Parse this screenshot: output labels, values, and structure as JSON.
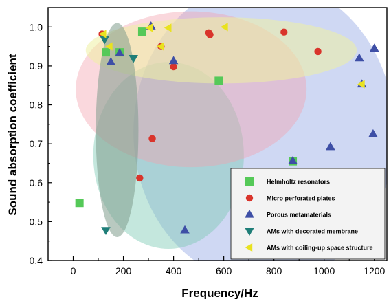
{
  "chart_data": {
    "type": "scatter",
    "xlabel": "Frequency/Hz",
    "ylabel": "Sound absorption coefficient",
    "xlim": [
      -100,
      1250
    ],
    "ylim": [
      0.4,
      1.05
    ],
    "x_ticks": [
      0,
      200,
      400,
      600,
      800,
      1000,
      1200
    ],
    "y_ticks": [
      0.4,
      0.5,
      0.6,
      0.7,
      0.8,
      0.9,
      1.0
    ],
    "x_tick_labels": [
      "0",
      "200",
      "400",
      "600",
      "800",
      "1000",
      "1200"
    ],
    "y_tick_labels": [
      "0.4",
      "0.5",
      "0.6",
      "0.7",
      "0.8",
      "0.9",
      "1.0"
    ],
    "grid": false,
    "legend_position": "bottom-right",
    "regions": [
      {
        "cx": 760,
        "cy": 0.73,
        "rx": 520,
        "ry": 0.39,
        "rotate": 0,
        "color": "#9aaee6",
        "opacity": 0.48
      },
      {
        "cx": 380,
        "cy": 0.67,
        "rx": 300,
        "ry": 0.24,
        "rotate": 0,
        "color": "#7ccab3",
        "opacity": 0.45
      },
      {
        "cx": 470,
        "cy": 0.84,
        "rx": 460,
        "ry": 0.2,
        "rotate": 0,
        "color": "#f3a3ae",
        "opacity": 0.42
      },
      {
        "cx": 590,
        "cy": 0.94,
        "rx": 540,
        "ry": 0.085,
        "rotate": 0,
        "color": "#eef0a2",
        "opacity": 0.55
      },
      {
        "cx": 175,
        "cy": 0.735,
        "rx": 85,
        "ry": 0.275,
        "rotate": 0,
        "color": "#7f9c8c",
        "opacity": 0.55
      }
    ],
    "series": [
      {
        "name": "Helmholtz resonators",
        "marker": "square",
        "color": "#55c958",
        "points": [
          [
            25,
            0.548
          ],
          [
            130,
            0.935
          ],
          [
            185,
            0.935
          ],
          [
            275,
            0.988
          ],
          [
            580,
            0.862
          ],
          [
            875,
            0.655
          ]
        ]
      },
      {
        "name": "Micro perforated plates",
        "marker": "circle",
        "color": "#d9342b",
        "points": [
          [
            115,
            0.982
          ],
          [
            265,
            0.612
          ],
          [
            315,
            0.713
          ],
          [
            350,
            0.95
          ],
          [
            400,
            0.898
          ],
          [
            540,
            0.985
          ],
          [
            545,
            0.98
          ],
          [
            840,
            0.987
          ],
          [
            975,
            0.937
          ]
        ]
      },
      {
        "name": "Porous metamaterials",
        "marker": "triangle-up",
        "color": "#3e4fa6",
        "points": [
          [
            150,
            0.91
          ],
          [
            185,
            0.933
          ],
          [
            310,
            1.002
          ],
          [
            400,
            0.913
          ],
          [
            445,
            0.478
          ],
          [
            875,
            0.656
          ],
          [
            1025,
            0.692
          ],
          [
            1140,
            0.92
          ],
          [
            1150,
            0.853
          ],
          [
            1195,
            0.725
          ],
          [
            1200,
            0.945
          ]
        ]
      },
      {
        "name": "AMs with decorated membrane",
        "marker": "triangle-down",
        "color": "#1f7e78",
        "points": [
          [
            125,
            0.968
          ],
          [
            130,
            0.478
          ],
          [
            240,
            0.92
          ]
        ]
      },
      {
        "name": "AMs with coiling-up space structure",
        "marker": "triangle-left",
        "color": "#e9e21f",
        "points": [
          [
            120,
            0.982
          ],
          [
            145,
            0.95
          ],
          [
            305,
            0.998
          ],
          [
            350,
            0.95
          ],
          [
            380,
            0.998
          ],
          [
            605,
            1.0
          ],
          [
            1150,
            0.853
          ]
        ]
      }
    ]
  }
}
